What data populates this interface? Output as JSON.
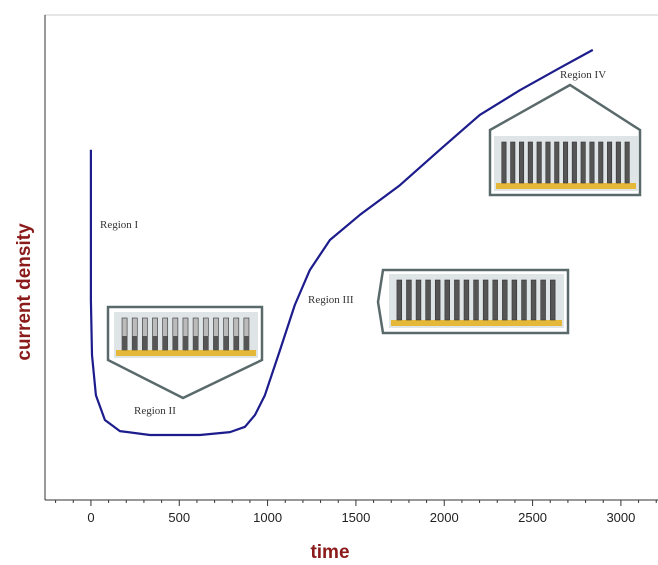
{
  "chart_data": {
    "type": "line",
    "x_label": "time",
    "y_label": "current density",
    "color": "#1c1c8c",
    "x": [
      0,
      0,
      6,
      28,
      79,
      164,
      334,
      617,
      787,
      872,
      928,
      985,
      1070,
      1154,
      1239,
      1353,
      1523,
      1749,
      1975,
      2201,
      2428,
      2654,
      2841
    ],
    "values": [
      72.2,
      41.2,
      29.9,
      21.6,
      16.5,
      14.2,
      13.4,
      13.4,
      14.0,
      15.1,
      17.5,
      21.6,
      30.9,
      40.2,
      47.4,
      53.6,
      58.8,
      64.9,
      72.2,
      79.4,
      84.5,
      89.1,
      92.8
    ],
    "xlim": [
      -260,
      3210
    ],
    "ylim": [
      0,
      100
    ],
    "xticks": [
      0,
      500,
      1000,
      1500,
      2000,
      2500,
      3000
    ],
    "xminorticks": [
      -200,
      -100,
      100,
      200,
      300,
      400,
      600,
      700,
      800,
      900,
      1100,
      1200,
      1300,
      1400,
      1600,
      1700,
      1800,
      1900,
      2100,
      2200,
      2300,
      2400,
      2600,
      2700,
      2800,
      2900,
      3100,
      3200
    ],
    "annotations": [
      "Region I",
      "Region II",
      "Region III",
      "Region IV"
    ]
  }
}
